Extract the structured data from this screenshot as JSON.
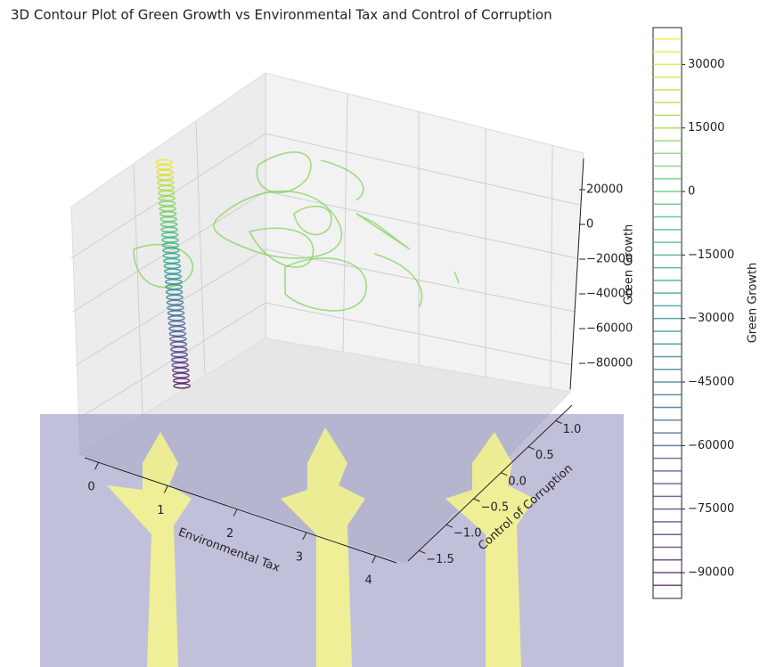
{
  "chart_data": {
    "type": "contour3d",
    "title": "3D Contour Plot of Green Growth vs Environmental Tax and Control of Corruption",
    "x_label": "Environmental Tax",
    "y_label": "Control of Corruption",
    "z_label": "Green Growth",
    "colorbar_label": "Green Growth",
    "colormap": "viridis",
    "xlim": [
      -0.2,
      4.3
    ],
    "xticks": [
      0,
      1,
      2,
      3,
      4
    ],
    "ylim": [
      -1.7,
      1.3
    ],
    "yticks": [
      {
        "value": -1.5,
        "label": "−1.5"
      },
      {
        "value": -1.0,
        "label": "−1.0"
      },
      {
        "value": -0.5,
        "label": "−0.5"
      },
      {
        "value": 0.0,
        "label": "0.0"
      },
      {
        "value": 0.5,
        "label": "0.5"
      },
      {
        "value": 1.0,
        "label": "1.0"
      }
    ],
    "zlim": [
      -95000,
      38000
    ],
    "zticks": [
      20000,
      0,
      {
        "value": -20000,
        "label": "−20000"
      },
      {
        "value": -40000,
        "label": "−40000"
      },
      {
        "value": -60000,
        "label": "−60000"
      },
      {
        "value": -80000,
        "label": "−80000"
      }
    ],
    "clim": [
      -96100,
      38700
    ],
    "cticks": [
      30000,
      15000,
      0,
      {
        "value": -15000,
        "label": "−15000"
      },
      {
        "value": -30000,
        "label": "−30000"
      },
      {
        "value": -45000,
        "label": "−45000"
      },
      {
        "value": -60000,
        "label": "−60000"
      },
      {
        "value": -75000,
        "label": "−75000"
      },
      {
        "value": -90000,
        "label": "−90000"
      }
    ],
    "levels": [
      -93000,
      -90000,
      -87000,
      -84000,
      -81000,
      -78000,
      -75000,
      -72000,
      -69000,
      -66000,
      -63000,
      -60000,
      -57000,
      -54000,
      -51000,
      -48000,
      -45000,
      -42000,
      -39000,
      -36000,
      -33000,
      -30000,
      -27000,
      -24000,
      -21000,
      -18000,
      -15000,
      -12000,
      -9000,
      -6000,
      -3000,
      0,
      3000,
      6000,
      9000,
      12000,
      15000,
      18000,
      21000,
      24000,
      27000,
      30000,
      33000,
      36000
    ]
  }
}
